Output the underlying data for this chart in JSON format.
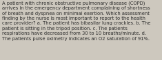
{
  "text": "A patient with chronic obstructive pulmonary disease (COPD)\narrives in the emergency department complaining of shortness\nof breath and dyspnea on minimal exertion. Which assessment\nfinding by the nurse is most important to report to the health\ncare provider? a. The patient has bibasilar lung crackles. b. The\npatient is sitting in the tripod position. c. The patients\nrespirations have decreased from 30 to 10 breaths/minute. d.\nThe patients pulse oximetry indicates an O2 saturation of 91%.",
  "bg_color": "#cdc8be",
  "text_color": "#2b2b2b",
  "font_size": 4.85,
  "fig_width": 2.35,
  "fig_height": 0.88,
  "dpi": 100
}
